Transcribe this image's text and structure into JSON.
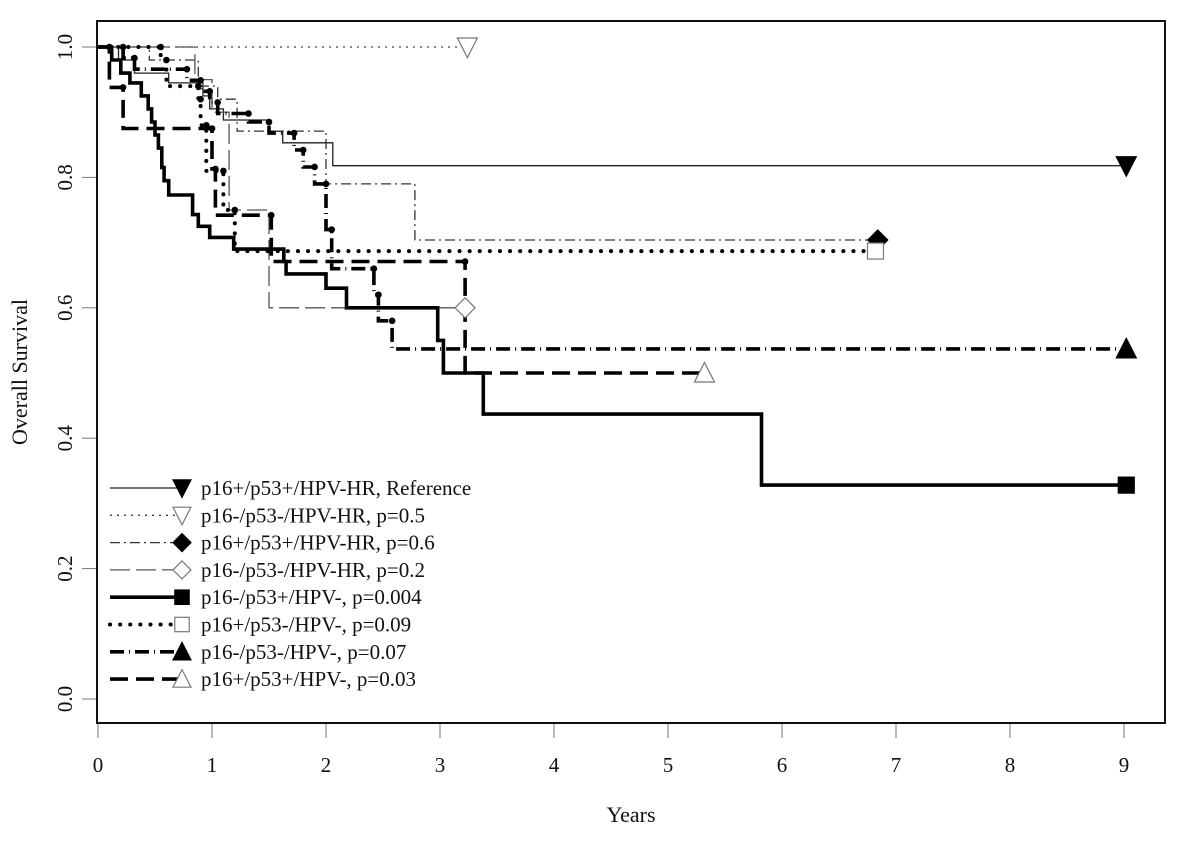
{
  "chart_data": {
    "type": "line",
    "subtype": "kaplan-meier-step",
    "title": "",
    "xlabel": "Years",
    "ylabel": "Overall Survival",
    "xlim": [
      0,
      9
    ],
    "ylim": [
      0,
      1
    ],
    "x_ticks": [
      0,
      1,
      2,
      3,
      4,
      5,
      6,
      7,
      8,
      9
    ],
    "x_tick_labels": [
      "0",
      "1",
      "2",
      "3",
      "4",
      "5",
      "6",
      "7",
      "8",
      "9"
    ],
    "y_ticks": [
      0.0,
      0.2,
      0.4,
      0.6,
      0.8,
      1.0
    ],
    "y_tick_labels": [
      "0.0",
      "0.2",
      "0.4",
      "0.6",
      "0.8",
      "1.0"
    ],
    "grid": false,
    "legend_position": "bottom-left",
    "series": [
      {
        "name": "p16+/p53+/HPV-HR, Reference",
        "line_style": "solid-thin",
        "marker": "filled-down-triangle",
        "censor_dots": false,
        "end": [
          9.02,
          0.818
        ],
        "steps": [
          [
            0,
            1.0
          ],
          [
            0.18,
            0.98
          ],
          [
            0.32,
            0.96
          ],
          [
            0.62,
            0.945
          ],
          [
            0.92,
            0.925
          ],
          [
            0.98,
            0.905
          ],
          [
            1.1,
            0.888
          ],
          [
            1.5,
            0.871
          ],
          [
            1.62,
            0.853
          ],
          [
            2.06,
            0.818
          ],
          [
            9.02,
            0.818
          ]
        ]
      },
      {
        "name": "p16-/p53-/HPV-HR, p=0.5",
        "line_style": "dotted-thin",
        "marker": "open-down-triangle",
        "censor_dots": false,
        "end": [
          3.24,
          1.0
        ],
        "steps": [
          [
            0,
            1.0
          ],
          [
            3.24,
            1.0
          ]
        ]
      },
      {
        "name": "p16+/p53+/HPV-HR, p=0.6",
        "line_style": "dashdot-thin",
        "marker": "filled-diamond",
        "censor_dots": false,
        "end": [
          6.84,
          0.704
        ],
        "steps": [
          [
            0,
            1.0
          ],
          [
            0.45,
            1.0
          ],
          [
            0.45,
            0.98
          ],
          [
            0.88,
            0.98
          ],
          [
            0.88,
            0.94
          ],
          [
            1.05,
            0.94
          ],
          [
            1.05,
            0.92
          ],
          [
            1.2,
            0.92
          ],
          [
            1.22,
            0.871
          ],
          [
            2.0,
            0.871
          ],
          [
            2.0,
            0.79
          ],
          [
            2.78,
            0.79
          ],
          [
            2.78,
            0.704
          ],
          [
            6.84,
            0.704
          ]
        ]
      },
      {
        "name": "p16-/p53-/HPV-HR, p=0.2",
        "line_style": "longdash-thin",
        "marker": "open-diamond",
        "censor_dots": false,
        "end": [
          3.22,
          0.6
        ],
        "steps": [
          [
            0,
            1.0
          ],
          [
            0.85,
            1.0
          ],
          [
            0.85,
            0.95
          ],
          [
            1.0,
            0.95
          ],
          [
            1.0,
            0.9
          ],
          [
            1.15,
            0.9
          ],
          [
            1.15,
            0.75
          ],
          [
            1.5,
            0.75
          ],
          [
            1.5,
            0.6
          ],
          [
            3.22,
            0.6
          ]
        ]
      },
      {
        "name": "p16-/p53+/HPV-, p=0.004",
        "line_style": "solid-thick",
        "marker": "filled-square",
        "censor_dots": false,
        "end": [
          9.02,
          0.328
        ],
        "steps": [
          [
            0,
            1.0
          ],
          [
            0.12,
            1.0
          ],
          [
            0.12,
            0.98
          ],
          [
            0.2,
            0.98
          ],
          [
            0.2,
            0.96
          ],
          [
            0.28,
            0.96
          ],
          [
            0.28,
            0.945
          ],
          [
            0.38,
            0.945
          ],
          [
            0.38,
            0.925
          ],
          [
            0.44,
            0.925
          ],
          [
            0.44,
            0.905
          ],
          [
            0.47,
            0.905
          ],
          [
            0.47,
            0.885
          ],
          [
            0.5,
            0.885
          ],
          [
            0.5,
            0.865
          ],
          [
            0.53,
            0.865
          ],
          [
            0.53,
            0.845
          ],
          [
            0.56,
            0.845
          ],
          [
            0.56,
            0.815
          ],
          [
            0.58,
            0.815
          ],
          [
            0.58,
            0.795
          ],
          [
            0.62,
            0.795
          ],
          [
            0.62,
            0.773
          ],
          [
            0.83,
            0.773
          ],
          [
            0.83,
            0.743
          ],
          [
            0.88,
            0.743
          ],
          [
            0.88,
            0.725
          ],
          [
            0.98,
            0.725
          ],
          [
            0.98,
            0.708
          ],
          [
            1.19,
            0.708
          ],
          [
            1.19,
            0.69
          ],
          [
            1.63,
            0.69
          ],
          [
            1.63,
            0.671
          ],
          [
            1.65,
            0.671
          ],
          [
            1.65,
            0.652
          ],
          [
            2.0,
            0.652
          ],
          [
            2.0,
            0.63
          ],
          [
            2.18,
            0.63
          ],
          [
            2.18,
            0.6
          ],
          [
            2.98,
            0.6
          ],
          [
            2.98,
            0.55
          ],
          [
            3.03,
            0.55
          ],
          [
            3.03,
            0.5
          ],
          [
            3.38,
            0.5
          ],
          [
            3.38,
            0.437
          ],
          [
            5.82,
            0.437
          ],
          [
            5.82,
            0.328
          ],
          [
            9.02,
            0.328
          ]
        ]
      },
      {
        "name": "p16+/p53-/HPV-, p=0.09",
        "line_style": "dotted-thick",
        "marker": "open-square",
        "censor_dots": true,
        "end": [
          6.82,
          0.687
        ],
        "steps": [
          [
            0,
            1.0
          ],
          [
            0.55,
            1.0
          ],
          [
            0.55,
            0.98
          ],
          [
            0.6,
            0.98
          ],
          [
            0.6,
            0.94
          ],
          [
            0.88,
            0.94
          ],
          [
            0.88,
            0.92
          ],
          [
            0.9,
            0.92
          ],
          [
            0.9,
            0.88
          ],
          [
            0.95,
            0.88
          ],
          [
            0.95,
            0.81
          ],
          [
            1.1,
            0.81
          ],
          [
            1.1,
            0.75
          ],
          [
            1.2,
            0.75
          ],
          [
            1.2,
            0.687
          ],
          [
            6.82,
            0.687
          ]
        ]
      },
      {
        "name": "p16-/p53-/HPV-, p=0.07",
        "line_style": "dashdot-thick",
        "marker": "filled-up-triangle",
        "censor_dots": true,
        "end": [
          9.02,
          0.537
        ],
        "steps": [
          [
            0,
            1.0
          ],
          [
            0.22,
            1.0
          ],
          [
            0.22,
            0.983
          ],
          [
            0.32,
            0.983
          ],
          [
            0.32,
            0.966
          ],
          [
            0.78,
            0.966
          ],
          [
            0.78,
            0.949
          ],
          [
            0.9,
            0.949
          ],
          [
            0.9,
            0.932
          ],
          [
            0.98,
            0.932
          ],
          [
            0.98,
            0.915
          ],
          [
            1.05,
            0.915
          ],
          [
            1.05,
            0.898
          ],
          [
            1.32,
            0.898
          ],
          [
            1.32,
            0.885
          ],
          [
            1.5,
            0.885
          ],
          [
            1.5,
            0.868
          ],
          [
            1.72,
            0.868
          ],
          [
            1.72,
            0.842
          ],
          [
            1.8,
            0.842
          ],
          [
            1.8,
            0.816
          ],
          [
            1.9,
            0.816
          ],
          [
            1.9,
            0.79
          ],
          [
            2.0,
            0.79
          ],
          [
            2.0,
            0.72
          ],
          [
            2.05,
            0.72
          ],
          [
            2.05,
            0.66
          ],
          [
            2.42,
            0.66
          ],
          [
            2.42,
            0.62
          ],
          [
            2.46,
            0.62
          ],
          [
            2.46,
            0.58
          ],
          [
            2.58,
            0.58
          ],
          [
            2.58,
            0.537
          ],
          [
            9.02,
            0.537
          ]
        ]
      },
      {
        "name": "p16+/p53+/HPV-, p=0.03",
        "line_style": "dash-thick",
        "marker": "open-up-triangle",
        "censor_dots": true,
        "end": [
          5.32,
          0.5
        ],
        "steps": [
          [
            0,
            1.0
          ],
          [
            0.1,
            1.0
          ],
          [
            0.1,
            0.938
          ],
          [
            0.22,
            0.938
          ],
          [
            0.22,
            0.875
          ],
          [
            1.0,
            0.875
          ],
          [
            1.0,
            0.813
          ],
          [
            1.03,
            0.813
          ],
          [
            1.03,
            0.742
          ],
          [
            1.52,
            0.742
          ],
          [
            1.52,
            0.671
          ],
          [
            3.22,
            0.671
          ],
          [
            3.22,
            0.5
          ],
          [
            5.32,
            0.5
          ]
        ]
      }
    ]
  }
}
